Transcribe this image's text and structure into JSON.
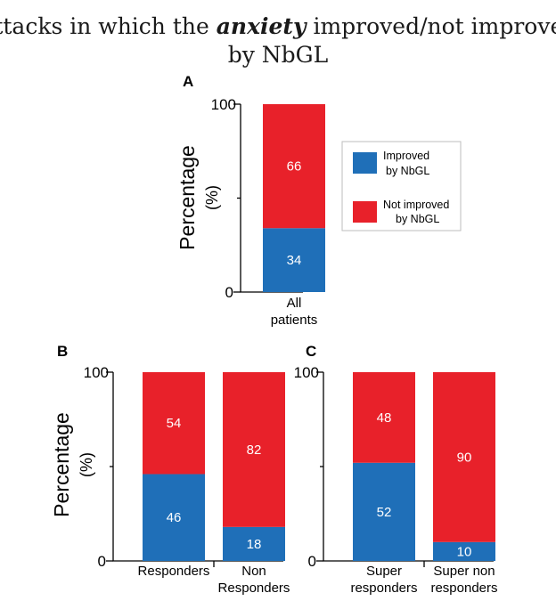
{
  "title": {
    "prefix": "Attacks in which the ",
    "emphasis": "anxiety",
    "suffix": " improved/not improved",
    "line2": "by NbGL"
  },
  "colors": {
    "improved": "#1f6fb8",
    "not_improved": "#e8212a"
  },
  "legend": {
    "improved": [
      "Improved",
      "by NbGL"
    ],
    "not_improved": [
      "Not improved",
      "by NbGL"
    ]
  },
  "y_axis": {
    "label": "Percentage",
    "unit": "(%)",
    "tick_top": "100",
    "tick_bottom": "0"
  },
  "chart_data": [
    {
      "panel": "A",
      "type": "bar",
      "stacked": true,
      "ylim": [
        0,
        100
      ],
      "ylabel": "Percentage (%)",
      "categories": [
        [
          "All",
          "patients"
        ]
      ],
      "series": [
        {
          "name": "Improved by NbGL",
          "values": [
            34
          ]
        },
        {
          "name": "Not improved by NbGL",
          "values": [
            66
          ]
        }
      ]
    },
    {
      "panel": "B",
      "type": "bar",
      "stacked": true,
      "ylim": [
        0,
        100
      ],
      "ylabel": "Percentage (%)",
      "categories": [
        [
          "Responders"
        ],
        [
          "Non",
          "Responders"
        ]
      ],
      "series": [
        {
          "name": "Improved by NbGL",
          "values": [
            46,
            18
          ]
        },
        {
          "name": "Not improved by NbGL",
          "values": [
            54,
            82
          ]
        }
      ]
    },
    {
      "panel": "C",
      "type": "bar",
      "stacked": true,
      "ylim": [
        0,
        100
      ],
      "ylabel": "",
      "categories": [
        [
          "Super",
          "responders"
        ],
        [
          "Super non",
          "responders"
        ]
      ],
      "series": [
        {
          "name": "Improved by NbGL",
          "values": [
            52,
            10
          ]
        },
        {
          "name": "Not improved by NbGL",
          "values": [
            48,
            90
          ]
        }
      ]
    }
  ]
}
